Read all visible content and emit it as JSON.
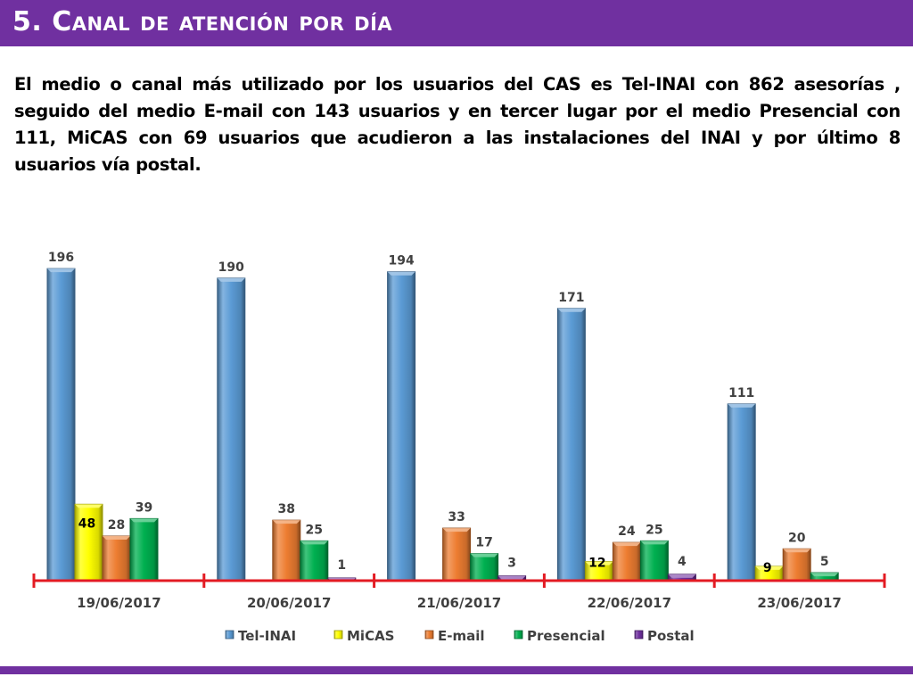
{
  "header": {
    "title": "5. Canal de atención por día"
  },
  "intro": "El medio o canal más utilizado por los usuarios del CAS es Tel-INAI con 862 asesorías , seguido del medio E-mail con 143 usuarios y en tercer lugar por el medio Presencial con 111, MiCAS con 69 usuarios que acudieron a las instalaciones del INAI y por último 8 usuarios vía postal.",
  "colors": {
    "title_bar": "#7030a0",
    "axis": "#e31b23",
    "tel_inai": "#5b9bd5",
    "micas": "#ffff00",
    "email": "#ed7d31",
    "presencial": "#00b050",
    "postal": "#7030a0"
  },
  "chart_data": {
    "type": "bar",
    "title": "",
    "xlabel": "",
    "ylabel": "",
    "ylim": [
      0,
      200
    ],
    "grid": false,
    "legend_position": "bottom",
    "categories": [
      "19/06/2017",
      "20/06/2017",
      "21/06/2017",
      "22/06/2017",
      "23/06/2017"
    ],
    "series": [
      {
        "name": "Tel-INAI",
        "color": "#5b9bd5",
        "values": [
          196,
          190,
          194,
          171,
          111
        ]
      },
      {
        "name": "MiCAS",
        "color": "#ffff00",
        "values": [
          48,
          null,
          null,
          12,
          9
        ]
      },
      {
        "name": "E-mail",
        "color": "#ed7d31",
        "values": [
          28,
          38,
          33,
          24,
          20
        ]
      },
      {
        "name": "Presencial",
        "color": "#00b050",
        "values": [
          39,
          25,
          17,
          25,
          5
        ]
      },
      {
        "name": "Postal",
        "color": "#7030a0",
        "values": [
          null,
          1,
          3,
          4,
          null
        ]
      }
    ]
  }
}
